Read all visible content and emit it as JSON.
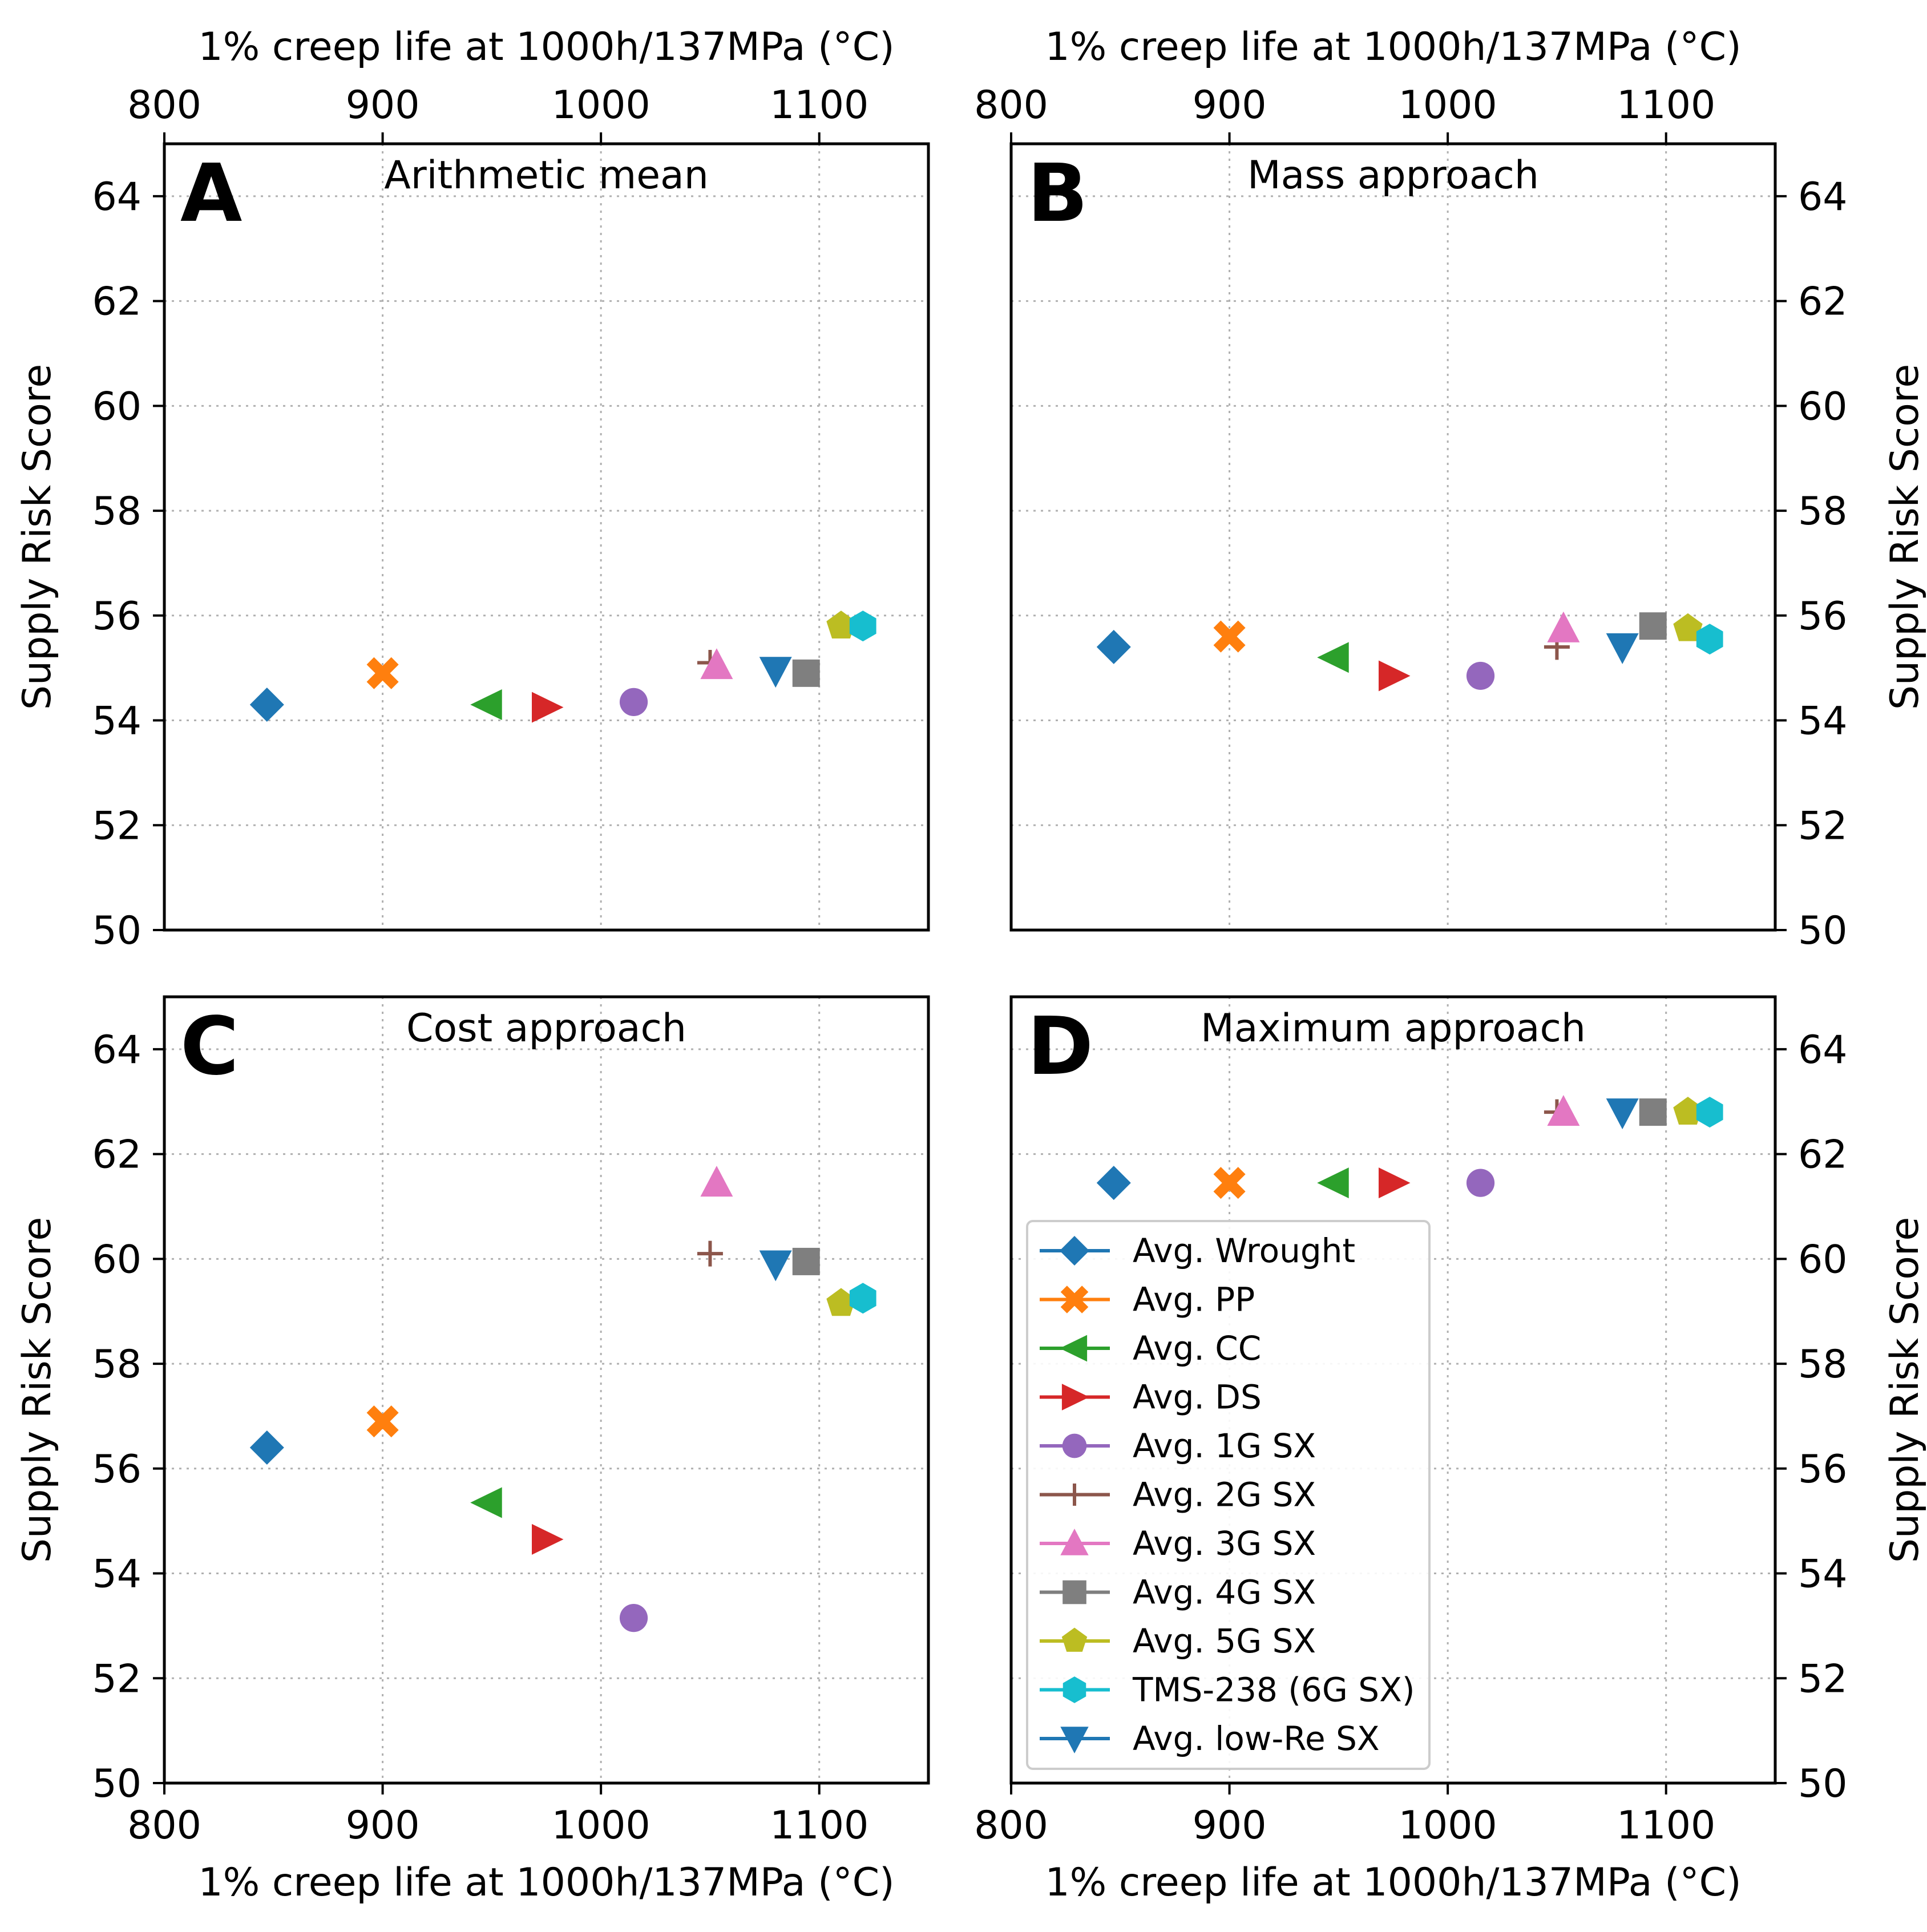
{
  "chart_data": {
    "type": "scatter",
    "shared_x_axis": {
      "label": "1% creep life at 1000h/137MPa (°C)",
      "range": [
        800,
        1150
      ],
      "ticks": [
        800,
        900,
        1000,
        1100
      ]
    },
    "shared_y_axis": {
      "label": "Supply Risk Score",
      "range": [
        50,
        65
      ],
      "ticks": [
        50,
        52,
        54,
        56,
        58,
        60,
        62,
        64
      ]
    },
    "grid": true,
    "series_styles": [
      {
        "name": "Avg. Wrought",
        "color": "#1f77b4",
        "marker": "diamond"
      },
      {
        "name": "Avg. PP",
        "color": "#ff7f0e",
        "marker": "x-filled"
      },
      {
        "name": "Avg. CC",
        "color": "#2ca02c",
        "marker": "triangle-left"
      },
      {
        "name": "Avg. DS",
        "color": "#d62728",
        "marker": "triangle-right"
      },
      {
        "name": "Avg. 1G SX",
        "color": "#9467bd",
        "marker": "circle"
      },
      {
        "name": "Avg. 2G SX",
        "color": "#8c564b",
        "marker": "plus"
      },
      {
        "name": "Avg. 3G SX",
        "color": "#e377c2",
        "marker": "triangle-up"
      },
      {
        "name": "Avg. 4G SX",
        "color": "#7f7f7f",
        "marker": "square"
      },
      {
        "name": "Avg. 5G SX",
        "color": "#bcbd22",
        "marker": "pentagon"
      },
      {
        "name": "TMS-238 (6G SX)",
        "color": "#17becf",
        "marker": "hexagon"
      },
      {
        "name": "Avg. low-Re SX",
        "color": "#1f77b4",
        "marker": "triangle-down"
      }
    ],
    "panels": [
      {
        "letter": "A",
        "title": "Arithmetic mean",
        "points": [
          {
            "series": "Avg. Wrought",
            "x": 847,
            "y": 54.3
          },
          {
            "series": "Avg. PP",
            "x": 900,
            "y": 54.9
          },
          {
            "series": "Avg. CC",
            "x": 948,
            "y": 54.3
          },
          {
            "series": "Avg. DS",
            "x": 975,
            "y": 54.25
          },
          {
            "series": "Avg. 1G SX",
            "x": 1015,
            "y": 54.35
          },
          {
            "series": "Avg. 2G SX",
            "x": 1050,
            "y": 55.1
          },
          {
            "series": "Avg. 3G SX",
            "x": 1053,
            "y": 55.05
          },
          {
            "series": "Avg. low-Re SX",
            "x": 1080,
            "y": 54.95
          },
          {
            "series": "Avg. 4G SX",
            "x": 1094,
            "y": 54.9
          },
          {
            "series": "Avg. 5G SX",
            "x": 1110,
            "y": 55.8
          },
          {
            "series": "TMS-238 (6G SX)",
            "x": 1120,
            "y": 55.8
          }
        ]
      },
      {
        "letter": "B",
        "title": "Mass approach",
        "points": [
          {
            "series": "Avg. Wrought",
            "x": 847,
            "y": 55.4
          },
          {
            "series": "Avg. PP",
            "x": 900,
            "y": 55.6
          },
          {
            "series": "Avg. CC",
            "x": 948,
            "y": 55.2
          },
          {
            "series": "Avg. DS",
            "x": 975,
            "y": 54.85
          },
          {
            "series": "Avg. 1G SX",
            "x": 1015,
            "y": 54.85
          },
          {
            "series": "Avg. 2G SX",
            "x": 1050,
            "y": 55.4
          },
          {
            "series": "Avg. 3G SX",
            "x": 1053,
            "y": 55.75
          },
          {
            "series": "Avg. low-Re SX",
            "x": 1080,
            "y": 55.4
          },
          {
            "series": "Avg. 4G SX",
            "x": 1094,
            "y": 55.8
          },
          {
            "series": "Avg. 5G SX",
            "x": 1110,
            "y": 55.75
          },
          {
            "series": "TMS-238 (6G SX)",
            "x": 1120,
            "y": 55.55
          }
        ]
      },
      {
        "letter": "C",
        "title": "Cost approach",
        "points": [
          {
            "series": "Avg. Wrought",
            "x": 847,
            "y": 56.4
          },
          {
            "series": "Avg. PP",
            "x": 900,
            "y": 56.9
          },
          {
            "series": "Avg. CC",
            "x": 948,
            "y": 55.35
          },
          {
            "series": "Avg. DS",
            "x": 975,
            "y": 54.65
          },
          {
            "series": "Avg. 1G SX",
            "x": 1015,
            "y": 53.15
          },
          {
            "series": "Avg. 2G SX",
            "x": 1050,
            "y": 60.1
          },
          {
            "series": "Avg. 3G SX",
            "x": 1053,
            "y": 61.45
          },
          {
            "series": "Avg. low-Re SX",
            "x": 1080,
            "y": 59.9
          },
          {
            "series": "Avg. 4G SX",
            "x": 1094,
            "y": 59.95
          },
          {
            "series": "Avg. 5G SX",
            "x": 1110,
            "y": 59.15
          },
          {
            "series": "TMS-238 (6G SX)",
            "x": 1120,
            "y": 59.25
          }
        ]
      },
      {
        "letter": "D",
        "title": "Maximum approach",
        "legend": "lower-left",
        "points": [
          {
            "series": "Avg. Wrought",
            "x": 847,
            "y": 61.45
          },
          {
            "series": "Avg. PP",
            "x": 900,
            "y": 61.45
          },
          {
            "series": "Avg. CC",
            "x": 948,
            "y": 61.45
          },
          {
            "series": "Avg. DS",
            "x": 975,
            "y": 61.45
          },
          {
            "series": "Avg. 1G SX",
            "x": 1015,
            "y": 61.45
          },
          {
            "series": "Avg. 2G SX",
            "x": 1050,
            "y": 62.8
          },
          {
            "series": "Avg. 3G SX",
            "x": 1053,
            "y": 62.8
          },
          {
            "series": "Avg. low-Re SX",
            "x": 1080,
            "y": 62.8
          },
          {
            "series": "Avg. 4G SX",
            "x": 1094,
            "y": 62.8
          },
          {
            "series": "Avg. 5G SX",
            "x": 1110,
            "y": 62.8
          },
          {
            "series": "TMS-238 (6G SX)",
            "x": 1120,
            "y": 62.8
          }
        ]
      }
    ]
  }
}
